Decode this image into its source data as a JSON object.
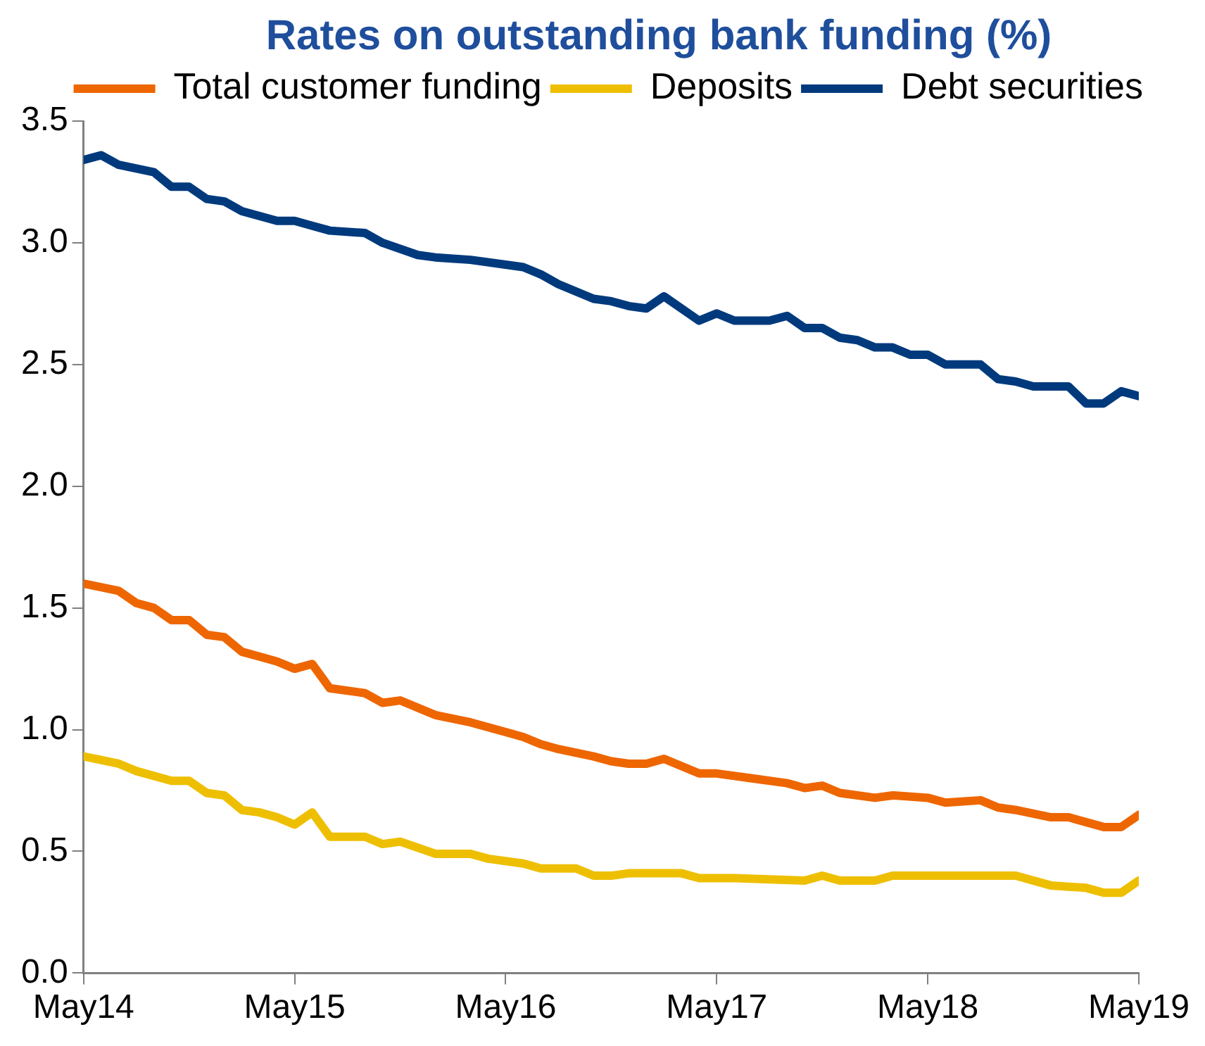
{
  "chart_data": {
    "type": "line",
    "title": "Rates on outstanding bank funding (%)",
    "xlim": [
      "2014-05",
      "2019-05"
    ],
    "xticks": [
      {
        "value": "2014-05",
        "label": "May14"
      },
      {
        "value": "2015-05",
        "label": "May15"
      },
      {
        "value": "2016-05",
        "label": "May16"
      },
      {
        "value": "2017-05",
        "label": "May17"
      },
      {
        "value": "2018-05",
        "label": "May18"
      },
      {
        "value": "2019-05",
        "label": "May19"
      }
    ],
    "ylim": [
      0,
      3.5
    ],
    "yticks": [
      {
        "value": 0,
        "label": "0.0"
      },
      {
        "value": 0.5,
        "label": "0.5"
      },
      {
        "value": 1,
        "label": "1.0"
      },
      {
        "value": 1.5,
        "label": "1.5"
      },
      {
        "value": 2,
        "label": "2.0"
      },
      {
        "value": 2.5,
        "label": "2.5"
      },
      {
        "value": 3,
        "label": "3.0"
      },
      {
        "value": 3.5,
        "label": "3.5"
      }
    ],
    "grid": false,
    "legend": "top right",
    "marker": "none",
    "line_style": "solid",
    "series": [
      {
        "name": "Total customer funding",
        "color": "#ee6600",
        "x": [
          "2014-05",
          "2014-07",
          "2014-08",
          "2014-09",
          "2014-10",
          "2014-11",
          "2014-12",
          "2015-01",
          "2015-02",
          "2015-03",
          "2015-04",
          "2015-05",
          "2015-06",
          "2015-07",
          "2015-09",
          "2015-10",
          "2015-11",
          "2016-01",
          "2016-03",
          "2016-05",
          "2016-06",
          "2016-07",
          "2016-08",
          "2016-10",
          "2016-11",
          "2016-12",
          "2017-01",
          "2017-02",
          "2017-04",
          "2017-05",
          "2017-07",
          "2017-09",
          "2017-10",
          "2017-11",
          "2017-12",
          "2018-02",
          "2018-03",
          "2018-05",
          "2018-06",
          "2018-08",
          "2018-09",
          "2018-10",
          "2018-12",
          "2019-01",
          "2019-03",
          "2019-04",
          "2019-05"
        ],
        "values": [
          1.6,
          1.57,
          1.52,
          1.5,
          1.45,
          1.45,
          1.39,
          1.38,
          1.32,
          1.3,
          1.28,
          1.25,
          1.27,
          1.17,
          1.15,
          1.11,
          1.12,
          1.06,
          1.03,
          0.99,
          0.97,
          0.94,
          0.92,
          0.89,
          0.87,
          0.86,
          0.86,
          0.88,
          0.82,
          0.82,
          0.8,
          0.78,
          0.76,
          0.77,
          0.74,
          0.72,
          0.73,
          0.72,
          0.7,
          0.71,
          0.68,
          0.67,
          0.64,
          0.64,
          0.6,
          0.6,
          0.65
        ]
      },
      {
        "name": "Deposits",
        "color": "#eebf00",
        "x": [
          "2014-05",
          "2014-07",
          "2014-08",
          "2014-10",
          "2014-11",
          "2014-12",
          "2015-01",
          "2015-02",
          "2015-03",
          "2015-04",
          "2015-05",
          "2015-06",
          "2015-07",
          "2015-09",
          "2015-10",
          "2015-11",
          "2016-01",
          "2016-03",
          "2016-04",
          "2016-06",
          "2016-07",
          "2016-09",
          "2016-10",
          "2016-11",
          "2016-12",
          "2017-03",
          "2017-04",
          "2017-06",
          "2017-10",
          "2017-11",
          "2017-12",
          "2018-02",
          "2018-03",
          "2018-05",
          "2018-06",
          "2018-07",
          "2018-09",
          "2018-10",
          "2018-12",
          "2019-02",
          "2019-03",
          "2019-04",
          "2019-05"
        ],
        "values": [
          0.89,
          0.86,
          0.83,
          0.79,
          0.79,
          0.74,
          0.73,
          0.67,
          0.66,
          0.64,
          0.61,
          0.66,
          0.56,
          0.56,
          0.53,
          0.54,
          0.49,
          0.49,
          0.47,
          0.45,
          0.43,
          0.43,
          0.4,
          0.4,
          0.41,
          0.41,
          0.39,
          0.39,
          0.38,
          0.4,
          0.38,
          0.38,
          0.4,
          0.4,
          0.4,
          0.4,
          0.4,
          0.4,
          0.36,
          0.35,
          0.33,
          0.33,
          0.38
        ]
      },
      {
        "name": "Debt securities",
        "color": "#003a7d",
        "x": [
          "2014-05",
          "2014-06",
          "2014-07",
          "2014-09",
          "2014-10",
          "2014-11",
          "2014-12",
          "2015-01",
          "2015-02",
          "2015-04",
          "2015-05",
          "2015-06",
          "2015-07",
          "2015-09",
          "2015-10",
          "2015-12",
          "2016-01",
          "2016-03",
          "2016-05",
          "2016-06",
          "2016-07",
          "2016-08",
          "2016-10",
          "2016-11",
          "2016-12",
          "2017-01",
          "2017-02",
          "2017-04",
          "2017-05",
          "2017-06",
          "2017-08",
          "2017-09",
          "2017-10",
          "2017-11",
          "2017-12",
          "2018-01",
          "2018-02",
          "2018-03",
          "2018-04",
          "2018-05",
          "2018-06",
          "2018-08",
          "2018-09",
          "2018-10",
          "2018-11",
          "2019-01",
          "2019-02",
          "2019-03",
          "2019-04",
          "2019-05"
        ],
        "values": [
          3.34,
          3.36,
          3.32,
          3.29,
          3.23,
          3.23,
          3.18,
          3.17,
          3.13,
          3.09,
          3.09,
          3.07,
          3.05,
          3.04,
          3.0,
          2.95,
          2.94,
          2.93,
          2.91,
          2.9,
          2.87,
          2.83,
          2.77,
          2.76,
          2.74,
          2.73,
          2.78,
          2.68,
          2.71,
          2.68,
          2.68,
          2.7,
          2.65,
          2.65,
          2.61,
          2.6,
          2.57,
          2.57,
          2.54,
          2.54,
          2.5,
          2.5,
          2.44,
          2.43,
          2.41,
          2.41,
          2.34,
          2.34,
          2.39,
          2.37
        ]
      }
    ]
  }
}
